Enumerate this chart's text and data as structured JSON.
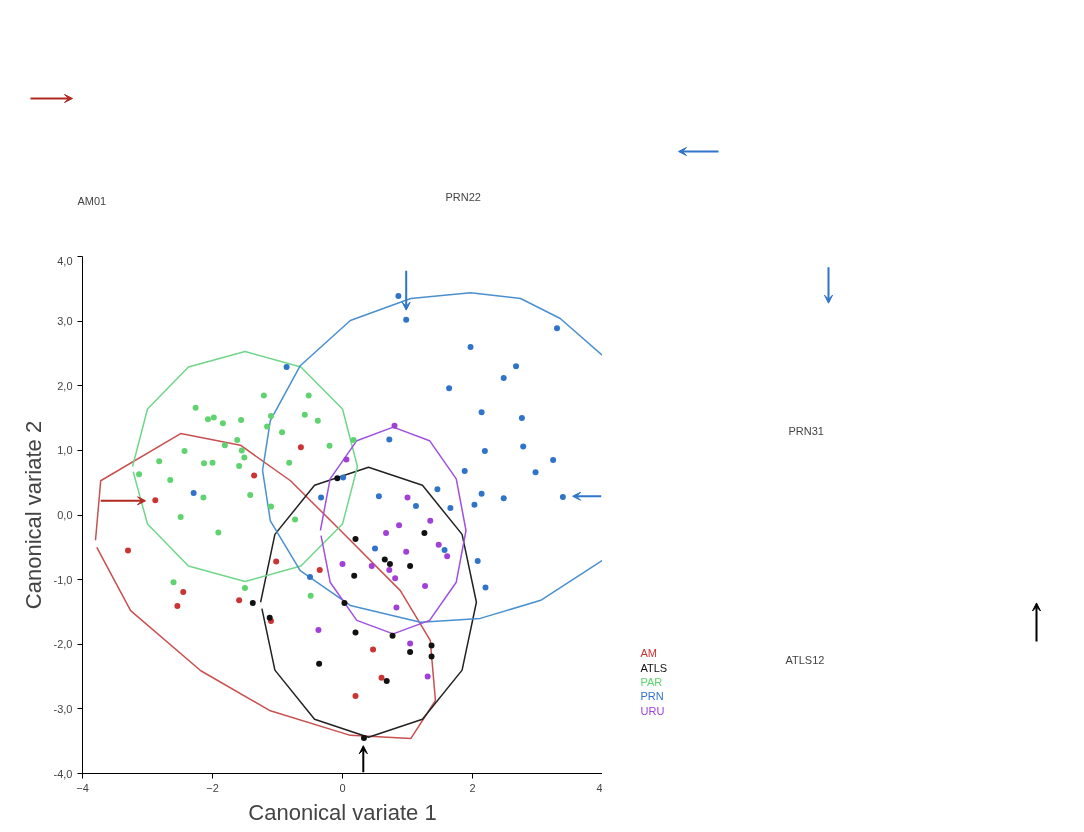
{
  "chart_data": {
    "type": "scatter",
    "xlabel": "Canonical variate 1",
    "ylabel": "Canonical variate 2",
    "xlim": [
      -4,
      4
    ],
    "ylim": [
      -4,
      4
    ],
    "xticks": [
      -4,
      -2,
      0,
      2,
      4
    ],
    "yticks": [
      {
        "value": -4,
        "label": "-4,0"
      },
      {
        "value": -3,
        "label": "-3,0"
      },
      {
        "value": -2,
        "label": "-2,0"
      },
      {
        "value": -1,
        "label": "-1,0"
      },
      {
        "value": 0,
        "label": "0,0"
      },
      {
        "value": 1,
        "label": "1,0"
      },
      {
        "value": 2,
        "label": "2,0"
      },
      {
        "value": 3,
        "label": "3,0"
      },
      {
        "value": 4,
        "label": "4,0"
      }
    ],
    "grid": false,
    "marker": "circle",
    "annotations": [
      "AM01",
      "PRN22",
      "PRN31",
      "ATLS12"
    ],
    "series": [
      {
        "name": "AM",
        "color": "#cc3333",
        "x": [
          -0.64,
          -1.36,
          -2.88,
          -3.3,
          -1.02,
          -0.35,
          -2.45,
          -2.54,
          -1.59,
          -1.1,
          0.2,
          0.47,
          0.6
        ],
        "values": [
          1.05,
          0.61,
          0.23,
          -0.55,
          -0.72,
          -0.85,
          -1.19,
          -1.41,
          -1.32,
          -1.64,
          -2.8,
          -2.08,
          -2.52
        ]
      },
      {
        "name": "ATLS",
        "color": "#111111",
        "x": [
          -1.38,
          -1.12,
          -0.08,
          0.2,
          0.18,
          0.03,
          0.2,
          -0.36,
          1.26,
          0.65,
          0.73,
          1.04,
          0.77,
          1.37,
          1.04,
          1.37,
          0.68,
          0.33
        ],
        "values": [
          -1.36,
          -1.59,
          0.57,
          -0.37,
          -0.94,
          -1.36,
          -1.82,
          -2.3,
          -0.28,
          -0.69,
          -0.76,
          -0.79,
          -1.87,
          -2.02,
          -2.12,
          -2.19,
          -2.57,
          -3.45
        ]
      },
      {
        "name": "PAR",
        "color": "#5fd36f",
        "x": [
          -2.26,
          -2.07,
          -1.98,
          -1.84,
          -1.56,
          -1.21,
          -1.1,
          -1.16,
          -0.93,
          -0.52,
          -0.58,
          -0.38,
          -0.2,
          0.17,
          -1.62,
          -1.81,
          -1.55,
          -1.51,
          -1.59,
          -2.0,
          -2.13,
          -2.43,
          -2.82,
          -3.13,
          -2.65,
          -0.82,
          -2.14,
          -1.42,
          -1.1,
          -2.49,
          -0.73,
          -1.91,
          -2.6,
          -1.5,
          -0.49
        ],
        "values": [
          1.66,
          1.48,
          1.51,
          1.42,
          1.47,
          1.85,
          1.53,
          1.37,
          1.28,
          1.85,
          1.55,
          1.46,
          1.07,
          1.16,
          1.16,
          1.08,
          1.0,
          0.89,
          0.76,
          0.81,
          0.8,
          0.99,
          0.83,
          0.63,
          0.54,
          0.81,
          0.27,
          0.31,
          0.13,
          -0.03,
          -0.07,
          -0.27,
          -1.04,
          -1.13,
          -1.25
        ]
      },
      {
        "name": "PRN",
        "color": "#2f74c9",
        "x": [
          -0.86,
          -2.29,
          -0.33,
          0.01,
          0.86,
          0.98,
          3.3,
          1.97,
          2.67,
          2.48,
          1.64,
          2.14,
          2.76,
          0.72,
          2.19,
          2.78,
          3.24,
          2.97,
          1.88,
          1.46,
          2.14,
          2.48,
          3.39,
          0.56,
          1.13,
          1.66,
          2.03,
          0.5,
          1.57,
          2.08,
          2.2,
          -0.5
        ],
        "values": [
          2.29,
          0.34,
          0.27,
          0.58,
          3.39,
          3.02,
          2.89,
          2.6,
          2.3,
          2.12,
          1.96,
          1.59,
          1.5,
          1.17,
          0.99,
          1.06,
          0.85,
          0.66,
          0.68,
          0.4,
          0.33,
          0.26,
          0.28,
          0.29,
          0.14,
          0.11,
          0.16,
          -0.52,
          -0.54,
          -0.71,
          -1.12,
          -0.96
        ]
      },
      {
        "name": "URU",
        "color": "#a040d8",
        "x": [
          0.06,
          0.8,
          1.0,
          0.0,
          -0.37,
          1.35,
          0.87,
          0.67,
          1.48,
          1.61,
          0.98,
          0.45,
          0.72,
          0.81,
          1.27,
          0.83,
          1.04,
          1.31
        ],
        "values": [
          0.86,
          1.38,
          0.27,
          -0.76,
          -1.78,
          -0.09,
          -0.16,
          -0.28,
          -0.46,
          -0.64,
          -0.57,
          -0.79,
          -0.85,
          -0.98,
          -1.1,
          -1.43,
          -1.99,
          -2.5
        ]
      },
      {
        "type": "line",
        "marker": "none",
        "color": "#c85050",
        "x": [
          -3.8,
          -3.72,
          -2.49,
          -1.57,
          -0.8,
          -0.03,
          0.89,
          1.35,
          1.43,
          1.05,
          0.12,
          -1.11,
          -2.18,
          -3.26,
          -3.78
        ],
        "values": [
          -0.39,
          0.53,
          1.26,
          1.08,
          0.53,
          -0.24,
          -1.17,
          -1.94,
          -2.87,
          -3.46,
          -3.41,
          -3.03,
          -2.41,
          -1.48,
          -0.5
        ]
      },
      {
        "type": "line",
        "marker": "none",
        "color": "#222222",
        "x": [
          -1.26,
          -1.04,
          -0.43,
          0.4,
          1.23,
          1.84,
          2.06,
          1.84,
          1.23,
          0.4,
          -0.43,
          -1.04,
          -1.24
        ],
        "values": [
          -1.35,
          -0.3,
          0.46,
          0.74,
          0.46,
          -0.3,
          -1.35,
          -2.4,
          -3.16,
          -3.44,
          -3.16,
          -2.4,
          -1.45
        ]
      },
      {
        "type": "line",
        "marker": "none",
        "color": "#70d68a",
        "x": [
          -3.23,
          -3.0,
          -2.37,
          -1.5,
          -0.64,
          0.0,
          0.23,
          0.0,
          -0.64,
          -1.5,
          -2.37,
          -3.0,
          -3.22
        ],
        "values": [
          0.75,
          1.64,
          2.29,
          2.53,
          2.29,
          1.64,
          0.75,
          -0.14,
          -0.79,
          -1.03,
          -0.79,
          -0.14,
          0.67
        ]
      },
      {
        "type": "line",
        "marker": "none",
        "color": "#4a8fd0",
        "x": [
          4.0,
          3.35,
          2.74,
          1.97,
          1.05,
          0.12,
          -0.65,
          -1.11,
          -1.23,
          -1.11,
          -0.65,
          0.12,
          1.2,
          2.12,
          3.05,
          4.0
        ],
        "values": [
          2.47,
          3.04,
          3.35,
          3.44,
          3.35,
          3.01,
          2.31,
          1.46,
          0.69,
          -0.09,
          -0.86,
          -1.4,
          -1.66,
          -1.6,
          -1.32,
          -0.7
        ]
      },
      {
        "type": "line",
        "marker": "none",
        "color": "#a050e0",
        "x": [
          -0.34,
          -0.19,
          0.22,
          0.78,
          1.34,
          1.75,
          1.9,
          1.75,
          1.34,
          0.78,
          0.22,
          -0.19,
          -0.33
        ],
        "values": [
          -0.24,
          0.56,
          1.15,
          1.36,
          1.15,
          0.56,
          -0.24,
          -1.04,
          -1.63,
          -1.84,
          -1.63,
          -1.04,
          -0.32
        ]
      }
    ]
  }
}
